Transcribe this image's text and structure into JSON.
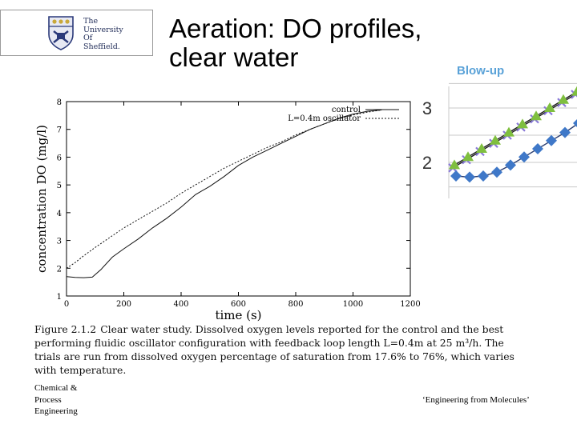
{
  "logo": {
    "lines": [
      "The",
      "University",
      "Of",
      "Sheffield."
    ]
  },
  "slide": {
    "title_line1": "Aeration: DO profiles,",
    "title_line2": "clear water",
    "blowup_label": "Blow-up"
  },
  "caption": {
    "figure_label": "Figure 2.1.2",
    "text": "Clear water study. Dissolved oxygen levels reported for the control and the best performing fluidic oscillator configuration with feedback loop length L=0.4m at 25 m³/h. The trials are run from dissolved oxygen percentage of saturation from 17.6% to 76%, which varies with temperature."
  },
  "footer": {
    "left_lines": [
      "Chemical &",
      "Process",
      "Engineering"
    ],
    "right": "‘Engineering from Molecules’"
  },
  "colors": {
    "blowup_label": "#5aa2d8",
    "blowup_green": "#7fbf3f",
    "blowup_blue": "#3f78c8",
    "blowup_purple": "#8a7ad8"
  },
  "chart_data": [
    {
      "type": "line",
      "title": "",
      "xlabel": "time (s)",
      "ylabel": "concentration DO (mg/l)",
      "xlim": [
        0,
        1200
      ],
      "ylim": [
        1,
        8
      ],
      "xticks": [
        0,
        200,
        400,
        600,
        800,
        1000,
        1200
      ],
      "yticks": [
        1,
        2,
        3,
        4,
        5,
        6,
        7,
        8
      ],
      "grid": false,
      "legend_position": "top-right",
      "series": [
        {
          "name": "control",
          "style": "solid",
          "x": [
            0,
            30,
            60,
            90,
            120,
            160,
            200,
            250,
            300,
            350,
            400,
            450,
            500,
            550,
            600,
            650,
            700,
            750,
            800,
            850,
            900,
            950,
            1000,
            1050,
            1100
          ],
          "y": [
            1.7,
            1.67,
            1.66,
            1.68,
            1.95,
            2.4,
            2.7,
            3.05,
            3.45,
            3.8,
            4.2,
            4.65,
            4.95,
            5.3,
            5.7,
            6.0,
            6.25,
            6.5,
            6.75,
            7.0,
            7.2,
            7.4,
            7.55,
            7.65,
            7.7
          ]
        },
        {
          "name": "L=0.4m oscillator",
          "style": "dotted",
          "x": [
            0,
            30,
            60,
            100,
            150,
            200,
            250,
            300,
            350,
            400,
            450,
            500,
            550,
            600,
            650,
            700,
            750,
            800,
            850,
            900,
            950,
            1000,
            1050,
            1100
          ],
          "y": [
            2.0,
            2.2,
            2.45,
            2.75,
            3.1,
            3.45,
            3.75,
            4.05,
            4.35,
            4.7,
            5.0,
            5.3,
            5.6,
            5.85,
            6.1,
            6.35,
            6.55,
            6.8,
            7.0,
            7.2,
            7.38,
            7.52,
            7.62,
            7.7
          ]
        }
      ]
    },
    {
      "type": "scatter",
      "title": "Blow-up",
      "yticks": [
        2,
        3
      ],
      "grid": true,
      "series": [
        {
          "name": "",
          "x": [
            0,
            1,
            2,
            3,
            4,
            5,
            6,
            7,
            8,
            9
          ],
          "y": [
            1.9,
            2.05,
            2.2,
            2.35,
            2.5,
            2.65,
            2.8,
            2.95,
            3.1,
            3.25
          ]
        },
        {
          "name": "",
          "x": [
            0,
            1,
            2,
            3,
            4,
            5,
            6,
            7,
            8,
            9
          ],
          "y": [
            1.95,
            2.1,
            2.25,
            2.4,
            2.55,
            2.7,
            2.85,
            3.0,
            3.15,
            3.3
          ]
        },
        {
          "name": "",
          "x": [
            0,
            1,
            2,
            3,
            4,
            5,
            6,
            7,
            8,
            9
          ],
          "y": [
            1.75,
            1.73,
            1.75,
            1.82,
            1.95,
            2.1,
            2.25,
            2.4,
            2.55,
            2.72
          ]
        }
      ]
    }
  ]
}
